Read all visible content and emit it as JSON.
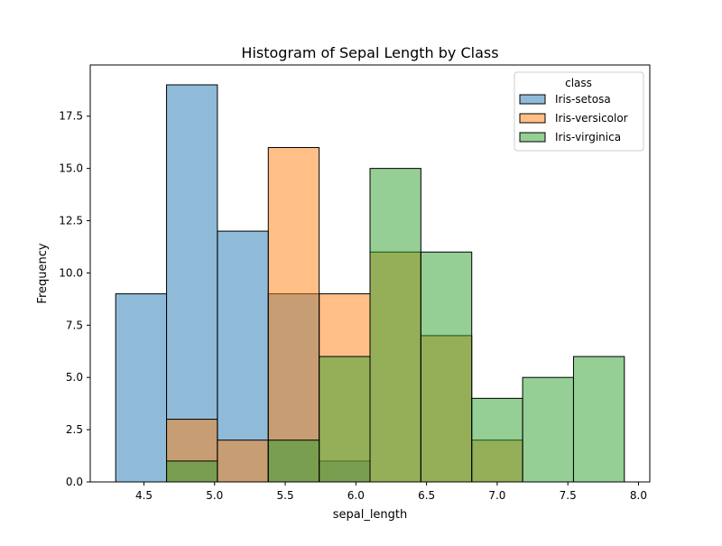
{
  "chart_data": {
    "type": "histogram",
    "title": "Histogram of Sepal Length by Class",
    "xlabel": "sepal_length",
    "ylabel": "Frequency",
    "xlim": [
      4.12,
      8.08
    ],
    "ylim": [
      0,
      19.95
    ],
    "xticks": [
      4.5,
      5.0,
      5.5,
      6.0,
      6.5,
      7.0,
      7.5,
      8.0
    ],
    "xtick_labels": [
      "4.5",
      "5.0",
      "5.5",
      "6.0",
      "6.5",
      "7.0",
      "7.5",
      "8.0"
    ],
    "yticks": [
      0,
      2.5,
      5,
      7.5,
      10,
      12.5,
      15,
      17.5
    ],
    "ytick_labels": [
      "0.0",
      "2.5",
      "5.0",
      "7.5",
      "10.0",
      "12.5",
      "15.0",
      "17.5"
    ],
    "bin_edges": [
      4.3,
      4.66,
      5.02,
      5.38,
      5.74,
      6.1,
      6.46,
      6.82,
      7.18,
      7.54,
      7.9
    ],
    "legend": {
      "title": "class",
      "position": "upper right"
    },
    "series": [
      {
        "name": "Iris-setosa",
        "color": "#1f77b4",
        "values": [
          9,
          19,
          12,
          9,
          1,
          0,
          0,
          0,
          0,
          0
        ]
      },
      {
        "name": "Iris-versicolor",
        "color": "#ff7f0e",
        "values": [
          0,
          3,
          2,
          16,
          9,
          11,
          7,
          2,
          0,
          0
        ]
      },
      {
        "name": "Iris-virginica",
        "color": "#2ca02c",
        "values": [
          0,
          1,
          0,
          2,
          6,
          15,
          11,
          4,
          5,
          6
        ]
      }
    ]
  }
}
